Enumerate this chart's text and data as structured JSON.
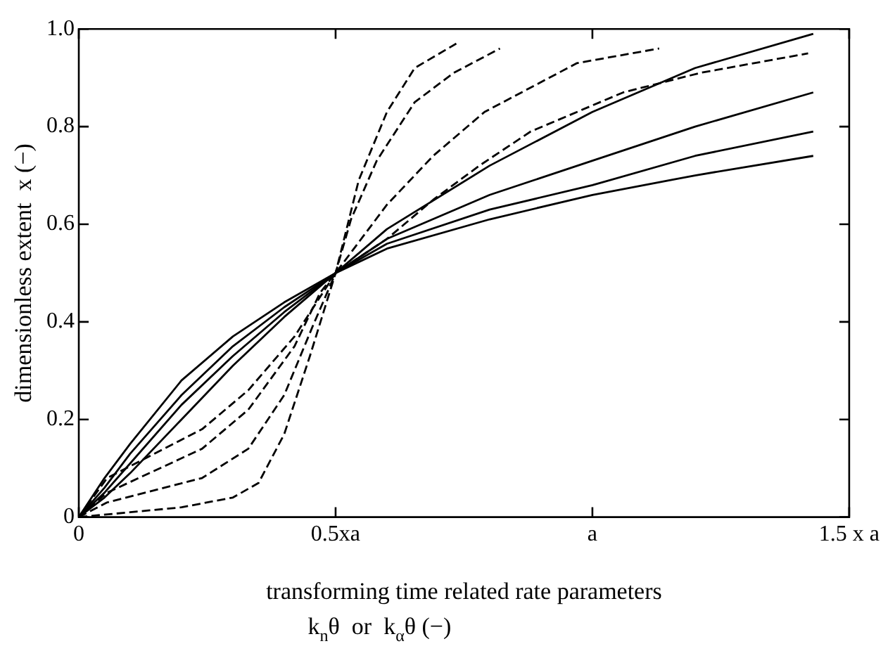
{
  "chart_data": {
    "type": "line",
    "xlabel": "transforming time related rate parameters\nk$_{n}$θ  or  k$_{α}$θ (−)",
    "ylabel": "dimensionless extent  x (−)",
    "x": [
      0,
      0.05,
      0.1,
      0.2,
      0.3,
      0.4,
      0.5,
      0.6,
      0.8,
      1.0,
      1.2,
      1.43
    ],
    "series": [
      {
        "color": "#000000",
        "values": [
          0,
          0.08,
          0.15,
          0.28,
          0.37,
          0.44,
          0.5,
          0.55,
          0.61,
          0.66,
          0.7,
          0.74
        ]
      },
      {
        "color": "#000000",
        "values": [
          0,
          0.06,
          0.13,
          0.25,
          0.35,
          0.43,
          0.5,
          0.56,
          0.63,
          0.68,
          0.74,
          0.79
        ]
      },
      {
        "color": "#000000",
        "values": [
          0,
          0.05,
          0.11,
          0.23,
          0.33,
          0.42,
          0.5,
          0.57,
          0.66,
          0.73,
          0.8,
          0.87
        ]
      },
      {
        "color": "#000000",
        "values": [
          0,
          0.04,
          0.09,
          0.2,
          0.31,
          0.41,
          0.5,
          0.59,
          0.72,
          0.83,
          0.92,
          0.99
        ]
      },
      {
        "color": "#000000",
        "line_style": "dashed",
        "x": [
          0,
          0.1,
          0.2,
          0.3,
          0.35,
          0.4,
          0.45,
          0.5,
          0.545,
          0.6,
          0.654,
          0.735
        ],
        "values": [
          0,
          0.01,
          0.02,
          0.04,
          0.07,
          0.17,
          0.33,
          0.5,
          0.69,
          0.83,
          0.92,
          0.97
        ]
      },
      {
        "color": "#000000",
        "line_style": "dashed",
        "x": [
          0,
          0.055,
          0.24,
          0.33,
          0.4,
          0.455,
          0.5,
          0.53,
          0.58,
          0.654,
          0.73,
          0.82
        ],
        "values": [
          0,
          0.03,
          0.08,
          0.14,
          0.25,
          0.39,
          0.5,
          0.61,
          0.73,
          0.85,
          0.91,
          0.96
        ]
      },
      {
        "color": "#000000",
        "line_style": "dashed",
        "x": [
          0,
          0.055,
          0.24,
          0.33,
          0.42,
          0.47,
          0.5,
          0.6,
          0.69,
          0.79,
          0.88,
          0.97,
          1.13
        ],
        "values": [
          0,
          0.05,
          0.14,
          0.22,
          0.35,
          0.46,
          0.5,
          0.64,
          0.74,
          0.83,
          0.88,
          0.93,
          0.96
        ]
      },
      {
        "color": "#000000",
        "line_style": "dashed",
        "x": [
          0,
          0.055,
          0.24,
          0.33,
          0.42,
          0.5,
          0.6,
          0.69,
          0.78,
          0.88,
          1.06,
          1.21,
          1.42
        ],
        "values": [
          0,
          0.08,
          0.18,
          0.26,
          0.37,
          0.5,
          0.57,
          0.65,
          0.72,
          0.79,
          0.87,
          0.91,
          0.95
        ]
      }
    ],
    "xlim": [
      0,
      1.5
    ],
    "xticks": [
      0,
      {
        "value": 0.5,
        "label": "0.5xa"
      },
      {
        "value": 1,
        "label": "a"
      },
      {
        "value": 1.5,
        "label": "1.5 x a"
      }
    ],
    "ylim": [
      0,
      1
    ],
    "yticks": [
      0,
      0.2,
      0.4,
      0.6,
      0.8,
      {
        "value": 1,
        "label": "1.0"
      }
    ],
    "grid": false,
    "legend": false,
    "marker": "none",
    "line_style": "solid"
  }
}
